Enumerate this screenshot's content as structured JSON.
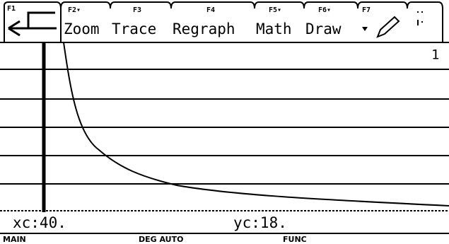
{
  "toolbar": {
    "tabs": [
      {
        "key": "F1"
      },
      {
        "key": "F2▾",
        "label": "Zoom"
      },
      {
        "key": "F3",
        "label": "Trace"
      },
      {
        "key": "F4",
        "label": "Regraph"
      },
      {
        "key": "F5▾",
        "label": "Math"
      },
      {
        "key": "F6▾",
        "label": "Draw"
      },
      {
        "key": "F7"
      }
    ]
  },
  "graph": {
    "number": "1"
  },
  "readout": {
    "x": "xc:40.",
    "y": "yc:18."
  },
  "status": {
    "mode": "MAIN",
    "angle": "DEG AUTO",
    "graph_mode": "FUNC"
  }
}
